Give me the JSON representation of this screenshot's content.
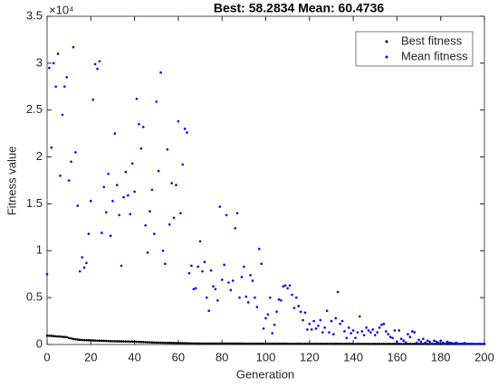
{
  "chart_data": {
    "type": "scatter",
    "title": "Best: 58.2834 Mean: 60.4736",
    "x_label": "Generation",
    "y_label": "Fitness value",
    "y_exponent_label": "×10⁴",
    "xlim": [
      0,
      200
    ],
    "xticks": [
      0,
      20,
      40,
      60,
      80,
      100,
      120,
      140,
      160,
      180,
      200
    ],
    "ylim": [
      0,
      35000
    ],
    "yticks": [
      {
        "value": 0,
        "label": "0"
      },
      {
        "value": 5000,
        "label": "0.5"
      },
      {
        "value": 10000,
        "label": "1"
      },
      {
        "value": 15000,
        "label": "1.5"
      },
      {
        "value": 20000,
        "label": "2"
      },
      {
        "value": 25000,
        "label": "2.5"
      },
      {
        "value": 30000,
        "label": "3"
      },
      {
        "value": 35000,
        "label": "3.5"
      }
    ],
    "grid": false,
    "legend": "northeast",
    "x": [
      0,
      1,
      2,
      3,
      4,
      5,
      6,
      7,
      8,
      9,
      10,
      11,
      12,
      13,
      14,
      15,
      16,
      17,
      18,
      19,
      20,
      21,
      22,
      23,
      24,
      25,
      26,
      27,
      28,
      29,
      30,
      31,
      32,
      33,
      34,
      35,
      36,
      37,
      38,
      39,
      40,
      41,
      42,
      43,
      44,
      45,
      46,
      47,
      48,
      49,
      50,
      51,
      52,
      53,
      54,
      55,
      56,
      57,
      58,
      59,
      60,
      61,
      62,
      63,
      64,
      65,
      66,
      67,
      68,
      69,
      70,
      71,
      72,
      73,
      74,
      75,
      76,
      77,
      78,
      79,
      80,
      81,
      82,
      83,
      84,
      85,
      86,
      87,
      88,
      89,
      90,
      91,
      92,
      93,
      94,
      95,
      96,
      97,
      98,
      99,
      100,
      101,
      102,
      103,
      104,
      105,
      106,
      107,
      108,
      109,
      110,
      111,
      112,
      113,
      114,
      115,
      116,
      117,
      118,
      119,
      120,
      121,
      122,
      123,
      124,
      125,
      126,
      127,
      128,
      129,
      130,
      131,
      132,
      133,
      134,
      135,
      136,
      137,
      138,
      139,
      140,
      141,
      142,
      143,
      144,
      145,
      146,
      147,
      148,
      149,
      150,
      151,
      152,
      153,
      154,
      155,
      156,
      157,
      158,
      159,
      160,
      161,
      162,
      163,
      164,
      165,
      166,
      167,
      168,
      169,
      170,
      171,
      172,
      173,
      174,
      175,
      176,
      177,
      178,
      179,
      180,
      181,
      182,
      183,
      184,
      185,
      186,
      187,
      188,
      189,
      190,
      191,
      192,
      193,
      194,
      195,
      196,
      197,
      198,
      199,
      200
    ],
    "series": [
      {
        "name": "Best fitness",
        "color": "#000000",
        "values": [
          950,
          930,
          920,
          900,
          880,
          860,
          850,
          820,
          800,
          780,
          700,
          650,
          600,
          560,
          520,
          500,
          480,
          470,
          460,
          450,
          440,
          430,
          420,
          410,
          400,
          400,
          390,
          380,
          370,
          360,
          350,
          350,
          340,
          340,
          330,
          330,
          320,
          320,
          310,
          310,
          300,
          290,
          280,
          270,
          260,
          250,
          240,
          230,
          220,
          210,
          200,
          200,
          190,
          190,
          180,
          180,
          170,
          170,
          160,
          160,
          150,
          150,
          140,
          140,
          130,
          130,
          120,
          120,
          110,
          110,
          100,
          100,
          100,
          100,
          100,
          100,
          100,
          100,
          100,
          100,
          100,
          100,
          100,
          100,
          100,
          100,
          100,
          100,
          100,
          100,
          95,
          95,
          95,
          95,
          95,
          95,
          95,
          95,
          95,
          95,
          90,
          90,
          90,
          90,
          90,
          90,
          90,
          90,
          90,
          90,
          85,
          85,
          85,
          85,
          85,
          85,
          85,
          85,
          85,
          85,
          80,
          80,
          80,
          80,
          80,
          80,
          80,
          80,
          80,
          80,
          75,
          75,
          75,
          75,
          75,
          75,
          75,
          75,
          75,
          75,
          70,
          70,
          70,
          70,
          70,
          70,
          70,
          70,
          70,
          70,
          65,
          65,
          65,
          65,
          65,
          65,
          65,
          65,
          65,
          65,
          62,
          62,
          62,
          62,
          62,
          62,
          62,
          62,
          62,
          62,
          60,
          60,
          60,
          60,
          60,
          60,
          60,
          60,
          60,
          60,
          59,
          59,
          59,
          59,
          59,
          59,
          59,
          59,
          59,
          59,
          59,
          59,
          59,
          59,
          59,
          59,
          59,
          59,
          59,
          59,
          58.2834
        ]
      },
      {
        "name": "Mean fitness",
        "color": "#0000ff",
        "values": [
          7500,
          29500,
          21000,
          30000,
          27500,
          31000,
          18000,
          24500,
          27500,
          28500,
          17500,
          19500,
          31700,
          20500,
          14800,
          7800,
          9300,
          8200,
          8700,
          11800,
          15300,
          26100,
          29900,
          29400,
          30200,
          11900,
          16800,
          14100,
          18200,
          11600,
          15300,
          22500,
          17000,
          13800,
          8400,
          15700,
          18400,
          15900,
          13900,
          19300,
          16300,
          26200,
          23500,
          20900,
          23200,
          12700,
          9800,
          14200,
          16500,
          11800,
          25900,
          18500,
          29000,
          10000,
          8600,
          20800,
          12800,
          17200,
          13500,
          17000,
          23800,
          14000,
          19200,
          23000,
          22600,
          7600,
          8400,
          5900,
          6000,
          8300,
          11000,
          7800,
          8800,
          5000,
          3600,
          7900,
          6200,
          5900,
          4700,
          14700,
          6900,
          8500,
          13800,
          6600,
          5800,
          6800,
          12400,
          14000,
          5000,
          7200,
          8300,
          5100,
          4500,
          7400,
          6800,
          5000,
          4000,
          10200,
          8600,
          1700,
          2800,
          3200,
          5000,
          1200,
          2100,
          3500,
          4800,
          4700,
          6200,
          6300,
          6000,
          6300,
          5300,
          3900,
          5000,
          4100,
          3500,
          2600,
          3400,
          1600,
          2200,
          1600,
          2500,
          1700,
          2000,
          2600,
          1300,
          1800,
          3600,
          1300,
          2500,
          1100,
          2800,
          5600,
          2200,
          2500,
          1400,
          700,
          1800,
          1200,
          1500,
          700,
          1300,
          3000,
          1400,
          1000,
          1800,
          1500,
          1300,
          1600,
          1000,
          1300,
          1800,
          2100,
          2200,
          1400,
          1100,
          800,
          700,
          1500,
          300,
          1500,
          600,
          400,
          200,
          1100,
          800,
          1400,
          1300,
          200,
          500,
          300,
          600,
          200,
          400,
          300,
          100,
          400,
          300,
          200,
          400,
          200,
          100,
          300,
          200,
          150,
          100,
          200,
          100,
          80,
          100,
          150,
          80,
          70,
          90,
          65,
          70,
          62,
          65,
          61,
          60.4736
        ]
      }
    ]
  }
}
